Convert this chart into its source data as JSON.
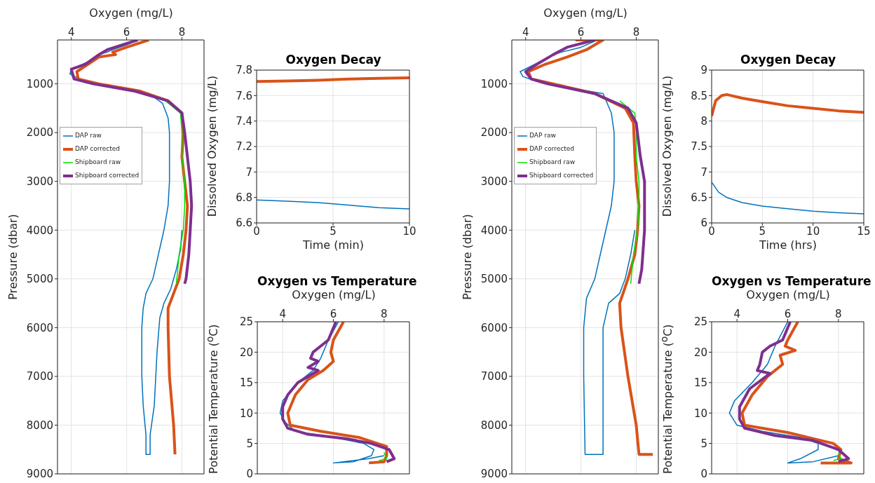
{
  "chart_data": [
    {
      "type": "line",
      "xlabel": "Oxygen (mg/L)",
      "ylabel": "Pressure (dbar)",
      "xlim": [
        3.5,
        8.8
      ],
      "xticks": [
        4,
        6,
        8
      ],
      "ylim": [
        9000,
        100
      ],
      "yticks": [
        1000,
        2000,
        3000,
        4000,
        5000,
        6000,
        7000,
        8000,
        9000
      ],
      "grid": true,
      "legend": "left",
      "series": [
        {
          "name": "DAP raw",
          "color": "#0072bd",
          "x": [
            6.4,
            6.0,
            5.5,
            5.3,
            5.0,
            4.6,
            4.0,
            3.95,
            4.3,
            5.0,
            6.0,
            6.8,
            7.3,
            7.5,
            7.55,
            7.55,
            7.55,
            7.5,
            7.35,
            7.15,
            6.95,
            6.7,
            6.6,
            6.55,
            6.55,
            6.6,
            6.7,
            6.7,
            6.85,
            6.85,
            7.0,
            7.1,
            7.2,
            7.35,
            7.6,
            7.8,
            7.95,
            8.0
          ],
          "values": [
            100,
            200,
            300,
            350,
            400,
            550,
            700,
            800,
            900,
            1000,
            1100,
            1200,
            1400,
            1700,
            2000,
            2500,
            3000,
            3500,
            4000,
            4500,
            5000,
            5300,
            5600,
            6000,
            7000,
            7600,
            8200,
            8600,
            8600,
            8200,
            7600,
            6500,
            5800,
            5500,
            5200,
            4800,
            4400,
            4000
          ]
        },
        {
          "name": "DAP corrected",
          "color": "#d95319",
          "x": [
            6.8,
            6.0,
            5.5,
            5.6,
            5.0,
            4.6,
            4.2,
            4.25,
            5.0,
            6.5,
            7.5,
            8.0,
            8.05,
            8.0,
            8.1,
            8.2,
            8.15,
            8.05,
            7.9,
            7.7,
            7.5,
            7.5,
            7.55,
            7.7,
            7.75
          ],
          "values": [
            100,
            250,
            350,
            400,
            450,
            600,
            750,
            900,
            1000,
            1150,
            1350,
            1600,
            2000,
            2500,
            3000,
            3500,
            4000,
            4500,
            5000,
            5300,
            5600,
            6000,
            7000,
            8000,
            8600
          ]
        },
        {
          "name": "Shipboard raw",
          "color": "#00e000",
          "x": [
            7.4,
            7.95,
            8.0,
            8.0,
            8.1,
            8.1,
            8.05,
            7.9,
            7.8
          ],
          "values": [
            1350,
            1600,
            2000,
            2500,
            3000,
            3500,
            4000,
            4500,
            5100
          ]
        },
        {
          "name": "Shipboard corrected",
          "color": "#7e2f8e",
          "x": [
            6.4,
            5.3,
            5.0,
            4.5,
            4.0,
            4.1,
            4.8,
            6.3,
            7.5,
            8.0,
            8.1,
            8.2,
            8.3,
            8.35,
            8.3,
            8.25,
            8.15,
            8.1
          ],
          "values": [
            100,
            300,
            400,
            600,
            700,
            900,
            1000,
            1150,
            1350,
            1600,
            2000,
            2500,
            3000,
            3500,
            4000,
            4500,
            5000,
            5100
          ]
        }
      ]
    },
    {
      "type": "line",
      "title": "Oxygen Decay",
      "xlabel": "Time (min)",
      "ylabel": "Dissolved Oxygen (mg/L)",
      "xlim": [
        0,
        10
      ],
      "xticks": [
        0,
        5,
        10
      ],
      "ylim": [
        6.6,
        7.8
      ],
      "yticks": [
        6.6,
        6.8,
        7,
        7.2,
        7.4,
        7.6,
        7.8
      ],
      "grid": true,
      "series": [
        {
          "color": "#0072bd",
          "x": [
            0,
            2,
            4,
            6,
            8,
            10
          ],
          "values": [
            6.78,
            6.77,
            6.76,
            6.74,
            6.72,
            6.71
          ]
        },
        {
          "color": "#d95319",
          "x": [
            0,
            2,
            4,
            6,
            8,
            10
          ],
          "values": [
            7.71,
            7.715,
            7.72,
            7.73,
            7.735,
            7.74
          ]
        }
      ]
    },
    {
      "type": "line",
      "title": "Oxygen vs Temperature",
      "xlabel": "Oxygen (mg/L)",
      "ylabel": "Potential Temperature ($^{o}$C)",
      "xlim": [
        3,
        9
      ],
      "xticks": [
        4,
        6,
        8
      ],
      "ylim": [
        0,
        25
      ],
      "yticks": [
        0,
        5,
        10,
        15,
        20,
        25
      ],
      "grid": true,
      "series": [
        {
          "color": "#0072bd",
          "x": [
            6.2,
            5.8,
            5.5,
            5.2,
            4.6,
            4.0,
            3.9,
            4.1,
            4.5,
            6.0,
            7.2,
            7.6,
            7.5,
            6.8,
            6.0,
            7.4,
            8.0
          ],
          "values": [
            25,
            22,
            19,
            17,
            15,
            12,
            10,
            8.5,
            7,
            6,
            5,
            4,
            3,
            2,
            1.8,
            2.5,
            3
          ]
        },
        {
          "color": "#d95319",
          "x": [
            6.4,
            6.0,
            5.9,
            6.0,
            5.6,
            5.0,
            4.5,
            4.2,
            4.3,
            5.5,
            7.0,
            8.1,
            8.1,
            8.0,
            7.4
          ],
          "values": [
            25,
            22,
            20,
            18.5,
            17,
            15.5,
            13,
            10,
            8,
            7,
            6,
            4.5,
            3,
            2,
            1.8
          ]
        },
        {
          "color": "#00e000",
          "x": [
            8.0,
            8.1,
            7.8
          ],
          "values": [
            3.5,
            2.5,
            2.2
          ]
        },
        {
          "color": "#7e2f8e",
          "x": [
            6.1,
            5.8,
            5.5,
            5.2,
            5.1,
            5.4,
            5.0,
            5.4,
            5.2,
            4.6,
            4.2,
            4.0,
            4.0,
            4.2,
            5.0,
            6.5,
            7.5,
            8.2,
            8.4,
            8.1
          ],
          "values": [
            25,
            22,
            21,
            20,
            19,
            18.5,
            17.5,
            17,
            16.5,
            15,
            13,
            11,
            9,
            7.5,
            6.5,
            5.8,
            5,
            4,
            2.5,
            2
          ]
        }
      ]
    },
    {
      "type": "line",
      "xlabel": "Oxygen (mg/L)",
      "ylabel": "Pressure (dbar)",
      "xlim": [
        3.5,
        8.8
      ],
      "xticks": [
        4,
        6,
        8
      ],
      "ylim": [
        9000,
        100
      ],
      "yticks": [
        1000,
        2000,
        3000,
        4000,
        5000,
        6000,
        7000,
        8000,
        9000
      ],
      "grid": true,
      "legend": "left",
      "series": [
        {
          "name": "DAP raw",
          "color": "#0072bd",
          "x": [
            6.6,
            6.0,
            5.3,
            5.0,
            4.5,
            3.8,
            3.9,
            4.4,
            5.2,
            6.8,
            7.1,
            7.2,
            7.2,
            7.1,
            6.9,
            6.7,
            6.5,
            6.2,
            6.1,
            6.1,
            6.15,
            6.8,
            6.8,
            6.8,
            7.0,
            7.4,
            7.6,
            7.8,
            7.95
          ],
          "values": [
            100,
            250,
            350,
            400,
            550,
            750,
            850,
            950,
            1050,
            1200,
            1600,
            2000,
            3000,
            3500,
            4000,
            4500,
            5000,
            5400,
            6000,
            7000,
            8600,
            8600,
            7000,
            6000,
            5500,
            5300,
            5000,
            4500,
            4000
          ]
        },
        {
          "name": "DAP corrected",
          "color": "#d95319",
          "x": [
            5.8,
            6.8,
            6.2,
            5.5,
            4.7,
            4.1,
            4.2,
            5.0,
            6.5,
            7.6,
            7.9,
            7.95,
            8.0,
            8.1,
            8.05,
            7.95,
            7.7,
            7.4,
            7.45,
            7.7,
            8.0,
            8.1,
            8.6
          ],
          "values": [
            100,
            100,
            300,
            450,
            600,
            750,
            900,
            1000,
            1200,
            1500,
            1800,
            2500,
            3000,
            3500,
            4000,
            4500,
            5000,
            5500,
            6000,
            7000,
            8000,
            8600,
            8600
          ]
        },
        {
          "name": "Shipboard raw",
          "color": "#00e000",
          "x": [
            7.4,
            7.95,
            8.0,
            8.0,
            8.1,
            8.1,
            8.05,
            7.9,
            7.8
          ],
          "values": [
            1350,
            1600,
            2000,
            2500,
            3000,
            3500,
            4000,
            4500,
            5100
          ]
        },
        {
          "name": "Shipboard corrected",
          "color": "#7e2f8e",
          "x": [
            6.5,
            5.5,
            5.0,
            4.4,
            4.0,
            4.2,
            4.8,
            6.5,
            7.7,
            8.0,
            8.15,
            8.3,
            8.3,
            8.2,
            8.1
          ],
          "values": [
            100,
            250,
            400,
            600,
            750,
            900,
            1000,
            1200,
            1500,
            1800,
            2500,
            3000,
            4000,
            4800,
            5100
          ]
        }
      ]
    },
    {
      "type": "line",
      "title": "Oxygen Decay",
      "xlabel": "Time (hrs)",
      "ylabel": "Dissolved Oxygen (mg/L)",
      "xlim": [
        0,
        15
      ],
      "xticks": [
        0,
        5,
        10,
        15
      ],
      "ylim": [
        6,
        9
      ],
      "yticks": [
        6,
        6.5,
        7,
        7.5,
        8,
        8.5,
        9
      ],
      "grid": true,
      "series": [
        {
          "color": "#0072bd",
          "x": [
            0,
            0.7,
            1.5,
            3,
            5,
            7.5,
            10,
            12.5,
            15
          ],
          "values": [
            6.8,
            6.6,
            6.5,
            6.4,
            6.33,
            6.28,
            6.23,
            6.2,
            6.18
          ]
        },
        {
          "color": "#d95319",
          "x": [
            0,
            0.4,
            1,
            1.5,
            3,
            5,
            7.5,
            10,
            12.5,
            15
          ],
          "values": [
            8.1,
            8.4,
            8.5,
            8.52,
            8.45,
            8.38,
            8.3,
            8.25,
            8.2,
            8.17
          ]
        }
      ]
    },
    {
      "type": "line",
      "title": "Oxygen vs Temperature",
      "xlabel": "Oxygen (mg/L)",
      "ylabel": "Potential Temperature ($^{o}$C)",
      "xlim": [
        3,
        9
      ],
      "xticks": [
        4,
        6,
        8
      ],
      "ylim": [
        0,
        25
      ],
      "yticks": [
        0,
        5,
        10,
        15,
        20,
        25
      ],
      "grid": true,
      "series": [
        {
          "color": "#0072bd",
          "x": [
            6.0,
            5.5,
            5.2,
            4.6,
            3.9,
            3.7,
            4.0,
            5.0,
            6.5,
            7.2,
            7.2,
            6.5,
            6.0,
            7.0,
            8.0
          ],
          "values": [
            25,
            21,
            18,
            15,
            12,
            10,
            8,
            7,
            6,
            5,
            4,
            2.5,
            1.8,
            2,
            3
          ]
        },
        {
          "color": "#d95319",
          "x": [
            6.4,
            6.0,
            5.9,
            6.3,
            5.7,
            5.8,
            5.2,
            4.6,
            4.2,
            4.3,
            6.0,
            7.8,
            8.1,
            8.0,
            8.5,
            7.3
          ],
          "values": [
            25,
            22,
            21,
            20.3,
            19.5,
            18,
            16,
            13,
            10,
            8,
            6.8,
            5,
            4,
            2.5,
            1.8,
            1.8
          ]
        },
        {
          "color": "#00e000",
          "x": [
            8.0,
            8.1,
            7.8
          ],
          "values": [
            3.5,
            2.5,
            2.2
          ]
        },
        {
          "color": "#7e2f8e",
          "x": [
            6.1,
            5.8,
            5.3,
            5.0,
            4.9,
            4.8,
            5.3,
            4.5,
            4.1,
            4.1,
            4.3,
            5.5,
            7.0,
            8.0,
            8.4,
            8.0
          ],
          "values": [
            25,
            22,
            21,
            20,
            18,
            17,
            16.5,
            14,
            11,
            9,
            7.5,
            6.3,
            5.5,
            4,
            2.5,
            2
          ]
        }
      ]
    }
  ]
}
